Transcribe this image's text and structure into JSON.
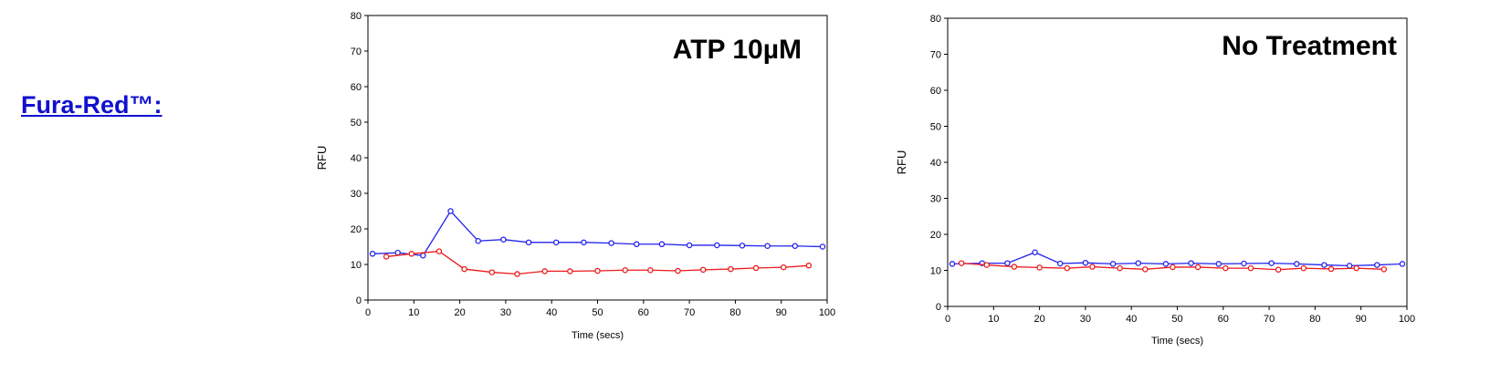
{
  "heading": "Fura-Red™:",
  "colors": {
    "blue": "#2222ee",
    "red": "#ee1a1a",
    "heading": "#1010d0"
  },
  "chart_data": [
    {
      "type": "line",
      "title": "ATP 10µM",
      "xlabel": "Time (secs)",
      "ylabel": "RFU",
      "xlim": [
        0,
        100
      ],
      "ylim": [
        0,
        80
      ],
      "xticks": [
        0,
        10,
        20,
        30,
        40,
        50,
        60,
        70,
        80,
        90,
        100
      ],
      "yticks": [
        0,
        10,
        20,
        30,
        40,
        50,
        60,
        70,
        80
      ],
      "grid": false,
      "series": [
        {
          "color": "#2222ee",
          "x": [
            1,
            6.5,
            12,
            18,
            24,
            29.5,
            35,
            41,
            47,
            53,
            58.5,
            64,
            70,
            76,
            81.5,
            87,
            93,
            99
          ],
          "y": [
            13,
            13.3,
            12.5,
            25,
            16.6,
            17,
            16.2,
            16.2,
            16.2,
            16,
            15.7,
            15.7,
            15.4,
            15.4,
            15.3,
            15.2,
            15.2,
            15
          ]
        },
        {
          "color": "#ee1a1a",
          "x": [
            4,
            9.5,
            15.5,
            21,
            27,
            32.5,
            38.5,
            44,
            50,
            56,
            61.5,
            67.5,
            73,
            79,
            84.5,
            90.5,
            96
          ],
          "y": [
            12.2,
            13,
            13.7,
            8.7,
            7.8,
            7.3,
            8.1,
            8.1,
            8.2,
            8.4,
            8.4,
            8.2,
            8.5,
            8.7,
            9,
            9.2,
            9.7
          ]
        }
      ]
    },
    {
      "type": "line",
      "title": "No Treatment",
      "xlabel": "Time (secs)",
      "ylabel": "RFU",
      "xlim": [
        0,
        100
      ],
      "ylim": [
        0,
        80
      ],
      "xticks": [
        0,
        10,
        20,
        30,
        40,
        50,
        60,
        70,
        80,
        90,
        100
      ],
      "yticks": [
        0,
        10,
        20,
        30,
        40,
        50,
        60,
        70,
        80
      ],
      "grid": false,
      "series": [
        {
          "color": "#2222ee",
          "x": [
            1,
            7.5,
            13,
            19,
            24.5,
            30,
            36,
            41.5,
            47.5,
            53,
            59,
            64.5,
            70.5,
            76,
            82,
            87.5,
            93.5,
            99
          ],
          "y": [
            11.8,
            12,
            12,
            15,
            11.9,
            12.1,
            11.8,
            12,
            11.8,
            12,
            11.8,
            11.9,
            12,
            11.8,
            11.5,
            11.3,
            11.5,
            11.8
          ]
        },
        {
          "color": "#ee1a1a",
          "x": [
            3,
            8.5,
            14.5,
            20,
            26,
            31.5,
            37.5,
            43,
            49,
            54.5,
            60.5,
            66,
            72,
            77.5,
            83.5,
            89,
            95
          ],
          "y": [
            12,
            11.5,
            11,
            10.8,
            10.6,
            11,
            10.6,
            10.3,
            10.9,
            10.9,
            10.6,
            10.6,
            10.2,
            10.6,
            10.4,
            10.6,
            10.3
          ]
        }
      ]
    }
  ]
}
